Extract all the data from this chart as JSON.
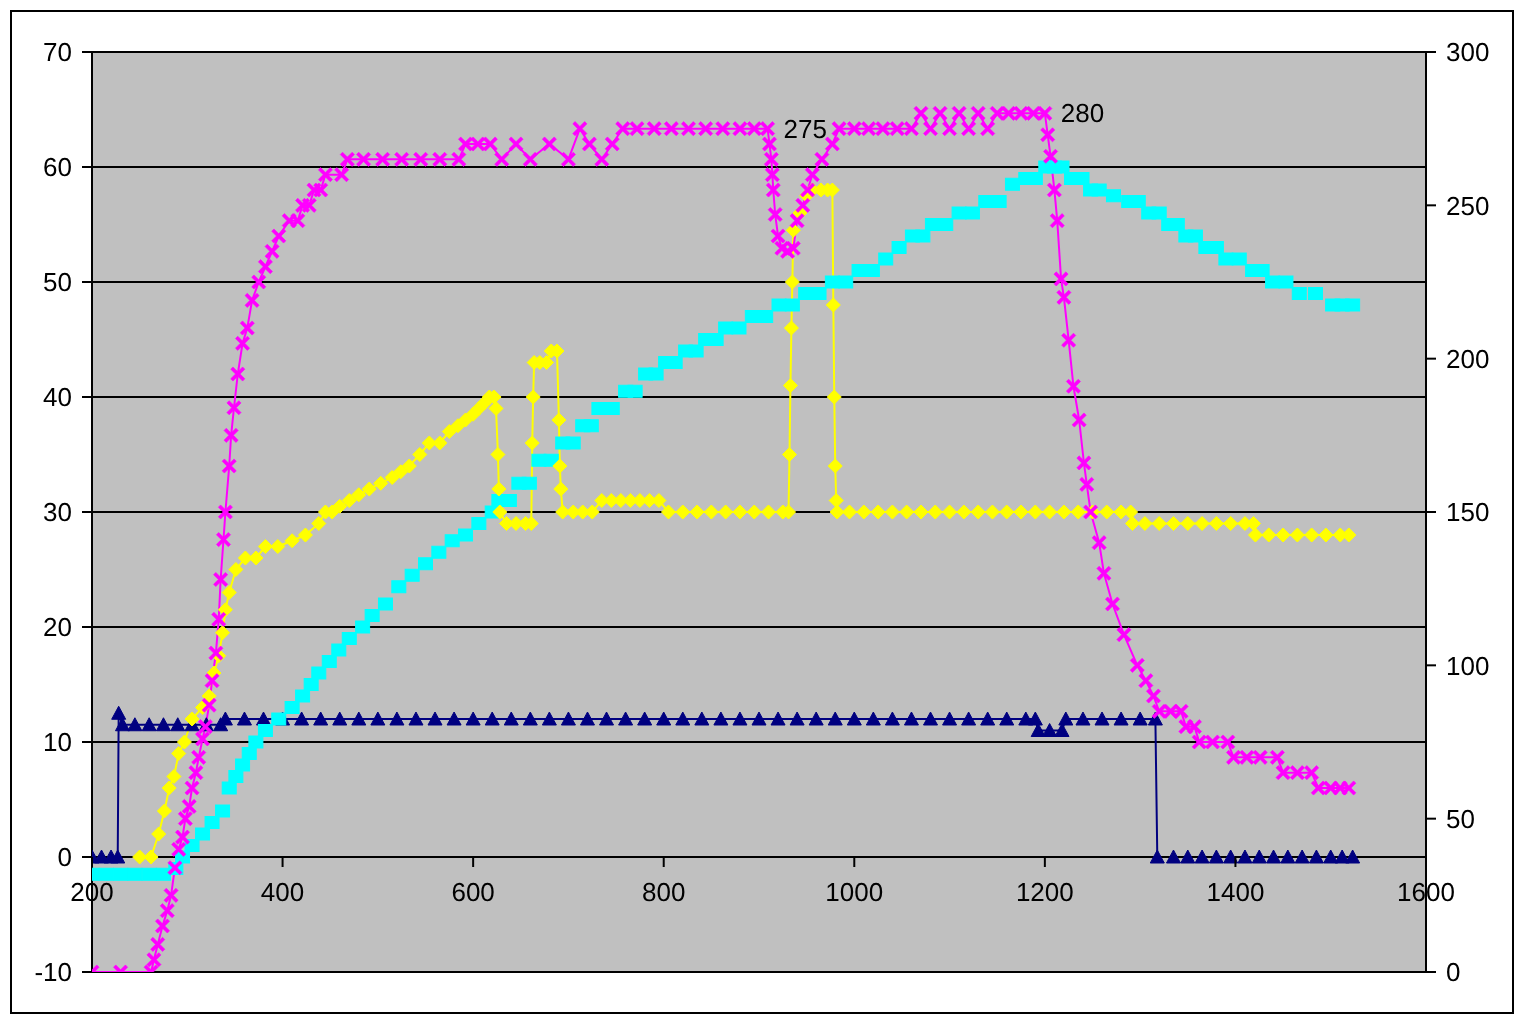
{
  "chart_data": {
    "type": "line",
    "xlim": [
      200,
      1600
    ],
    "xticks": [
      200,
      400,
      600,
      800,
      1000,
      1200,
      1400,
      1600
    ],
    "ylim": [
      -10,
      70
    ],
    "yticks": [
      -10,
      0,
      10,
      20,
      30,
      40,
      50,
      60,
      70
    ],
    "y2lim": [
      0,
      300
    ],
    "y2ticks": [
      0,
      50,
      100,
      150,
      200,
      250,
      300
    ],
    "grid": "y",
    "line_style": "solid",
    "series": [
      {
        "color": "#000080",
        "marker": "triangle",
        "x": [
          200,
          210,
          220,
          227,
          228,
          232,
          245,
          260,
          275,
          290,
          305,
          320,
          335,
          340,
          360,
          380,
          400,
          420,
          440,
          460,
          480,
          500,
          520,
          540,
          560,
          580,
          600,
          620,
          640,
          660,
          680,
          700,
          720,
          740,
          760,
          780,
          800,
          820,
          840,
          860,
          880,
          900,
          920,
          940,
          960,
          980,
          1000,
          1020,
          1040,
          1060,
          1080,
          1100,
          1120,
          1140,
          1160,
          1180,
          1190,
          1193,
          1205,
          1218,
          1222,
          1240,
          1260,
          1280,
          1300,
          1316,
          1318,
          1335,
          1350,
          1365,
          1380,
          1395,
          1410,
          1425,
          1440,
          1455,
          1470,
          1485,
          1500,
          1512,
          1523
        ],
        "values": [
          0,
          0,
          0,
          0,
          12.5,
          11.5,
          11.5,
          11.5,
          11.5,
          11.5,
          11.5,
          11.5,
          11.5,
          12,
          12,
          12,
          12,
          12,
          12,
          12,
          12,
          12,
          12,
          12,
          12,
          12,
          12,
          12,
          12,
          12,
          12,
          12,
          12,
          12,
          12,
          12,
          12,
          12,
          12,
          12,
          12,
          12,
          12,
          12,
          12,
          12,
          12,
          12,
          12,
          12,
          12,
          12,
          12,
          12,
          12,
          12,
          12,
          11,
          11,
          11,
          12,
          12,
          12,
          12,
          12,
          12,
          0,
          0,
          0,
          0,
          0,
          0,
          0,
          0,
          0,
          0,
          0,
          0,
          0,
          0,
          0
        ]
      },
      {
        "type": "scatter",
        "color": "#00ffff",
        "marker": "square",
        "x": [
          200,
          215,
          230,
          245,
          260,
          275,
          288,
          295,
          305,
          316,
          326,
          337,
          344,
          351,
          358,
          365,
          372,
          382,
          396,
          410,
          421,
          430,
          438,
          449,
          459,
          470,
          484,
          494,
          508,
          522,
          536,
          550,
          564,
          578,
          592,
          606,
          620,
          627,
          638,
          648,
          659,
          669,
          682,
          694,
          705,
          715,
          724,
          732,
          746,
          760,
          770,
          781,
          792,
          802,
          812,
          823,
          834,
          844,
          855,
          865,
          879,
          893,
          907,
          921,
          935,
          949,
          963,
          977,
          991,
          1005,
          1019,
          1033,
          1047,
          1061,
          1072,
          1082,
          1096,
          1110,
          1124,
          1138,
          1152,
          1166,
          1180,
          1190,
          1201,
          1210,
          1218,
          1228,
          1239,
          1248,
          1257,
          1272,
          1288,
          1298,
          1309,
          1320,
          1330,
          1339,
          1348,
          1358,
          1369,
          1380,
          1390,
          1404,
          1418,
          1428,
          1439,
          1453,
          1467,
          1484,
          1502,
          1512,
          1523
        ],
        "values": [
          -1.5,
          -1.5,
          -1.5,
          -1.5,
          -1.5,
          -1.5,
          -1,
          0,
          1,
          2,
          3,
          4,
          6,
          7,
          8,
          9,
          10,
          11,
          12,
          13,
          14,
          15,
          16,
          17,
          18,
          19,
          20,
          21,
          22,
          23.5,
          24.5,
          25.5,
          26.5,
          27.5,
          28,
          29,
          30,
          31,
          31,
          32.5,
          32.5,
          34.5,
          34.5,
          36,
          36,
          37.5,
          37.5,
          39,
          39,
          40.5,
          40.5,
          42,
          42,
          43,
          43,
          44,
          44,
          45,
          45,
          46,
          46,
          47,
          47,
          48,
          48,
          49,
          49,
          50,
          50,
          51,
          51,
          52,
          53,
          54,
          54,
          55,
          55,
          56,
          56,
          57,
          57,
          58.5,
          59,
          59,
          60,
          60,
          60,
          59,
          59,
          58,
          58,
          57.5,
          57,
          57,
          56,
          56,
          55,
          55,
          54,
          54,
          53,
          53,
          52,
          52,
          51,
          51,
          50,
          50,
          49,
          49,
          48,
          48,
          48
        ]
      },
      {
        "color": "#ffff00",
        "marker": "diamond",
        "x": [
          250,
          262,
          270,
          276,
          281,
          286,
          291,
          297,
          305,
          316,
          323,
          328,
          333,
          337,
          340,
          344,
          351,
          361,
          372,
          382,
          395,
          410,
          424,
          438,
          445,
          452,
          460,
          470,
          480,
          491,
          503,
          515,
          524,
          533,
          544,
          554,
          565,
          575,
          584,
          592,
          600,
          606,
          612,
          617,
          622,
          624,
          626,
          627,
          628,
          635,
          645,
          655,
          661,
          662,
          663,
          664,
          670,
          677,
          682,
          688,
          690,
          691,
          692,
          694,
          705,
          715,
          725,
          735,
          745,
          755,
          765,
          775,
          785,
          795,
          805,
          820,
          835,
          850,
          865,
          880,
          895,
          910,
          925,
          931,
          932,
          933,
          934,
          935,
          936,
          943,
          950,
          956,
          965,
          972,
          977,
          978,
          979,
          980,
          981,
          982,
          995,
          1010,
          1025,
          1040,
          1055,
          1070,
          1085,
          1100,
          1115,
          1130,
          1145,
          1160,
          1175,
          1190,
          1205,
          1220,
          1235,
          1250,
          1265,
          1280,
          1290,
          1292,
          1305,
          1320,
          1335,
          1350,
          1365,
          1380,
          1395,
          1410,
          1419,
          1421,
          1435,
          1450,
          1465,
          1480,
          1495,
          1510,
          1519
        ],
        "values": [
          0,
          0,
          2,
          4,
          6,
          7,
          9,
          10,
          12,
          13,
          14,
          16,
          17.5,
          19.5,
          21.5,
          23,
          25,
          26,
          26,
          27,
          27,
          27.5,
          28,
          29,
          30,
          30,
          30.5,
          31,
          31.5,
          32,
          32.5,
          33,
          33.5,
          34,
          35,
          36,
          36,
          37,
          37.5,
          38,
          38.5,
          39,
          39.5,
          40,
          40,
          39,
          35,
          32,
          30,
          29,
          29,
          29,
          29,
          36,
          40,
          43,
          43,
          43,
          44,
          44,
          38,
          34,
          32,
          30,
          30,
          30,
          30,
          31,
          31,
          31,
          31,
          31,
          31,
          31,
          30,
          30,
          30,
          30,
          30,
          30,
          30,
          30,
          30,
          30,
          35,
          41,
          46,
          50,
          54.5,
          56,
          57.5,
          58,
          58,
          58,
          58,
          48,
          40,
          34,
          31,
          30,
          30,
          30,
          30,
          30,
          30,
          30,
          30,
          30,
          30,
          30,
          30,
          30,
          30,
          30,
          30,
          30,
          30,
          30,
          30,
          30,
          30,
          29,
          29,
          29,
          29,
          29,
          29,
          29,
          29,
          29,
          29,
          28,
          28,
          28,
          28,
          28,
          28,
          28,
          28
        ]
      },
      {
        "color": "#ff00ff",
        "marker": "cross",
        "axis": "y2",
        "x": [
          200,
          230,
          262,
          265,
          269,
          274,
          279,
          283,
          287,
          291,
          295,
          298,
          302,
          305,
          309,
          312,
          316,
          319,
          323,
          326,
          330,
          333,
          335,
          338,
          340,
          344,
          346,
          349,
          353,
          358,
          363,
          368,
          375,
          382,
          389,
          396,
          407,
          416,
          421,
          428,
          433,
          440,
          445,
          462,
          468,
          485,
          505,
          525,
          545,
          565,
          585,
          592,
          605,
          618,
          630,
          645,
          660,
          680,
          700,
          712,
          722,
          735,
          746,
          757,
          772,
          790,
          808,
          826,
          844,
          862,
          880,
          895,
          909,
          911,
          913,
          914,
          915,
          917,
          920,
          924,
          930,
          936,
          940,
          946,
          951,
          956,
          966,
          977,
          984,
          1000,
          1015,
          1030,
          1045,
          1060,
          1070,
          1080,
          1090,
          1100,
          1110,
          1120,
          1130,
          1140,
          1150,
          1162,
          1175,
          1188,
          1200,
          1203,
          1206,
          1210,
          1213,
          1217,
          1220,
          1225,
          1230,
          1236,
          1241,
          1244,
          1248,
          1257,
          1262,
          1271,
          1283,
          1297,
          1306,
          1314,
          1320,
          1332,
          1343,
          1348,
          1357,
          1362,
          1376,
          1392,
          1398,
          1412,
          1426,
          1444,
          1450,
          1465,
          1480,
          1487,
          1500,
          1510,
          1519
        ],
        "values": [
          0,
          0,
          0,
          4,
          9,
          15,
          20,
          25,
          34,
          40,
          44,
          50,
          54,
          60,
          65,
          70,
          76,
          80,
          87,
          95,
          104,
          115,
          128,
          141,
          150,
          165,
          175,
          184,
          195,
          205,
          210,
          219,
          225,
          230,
          235,
          240,
          245,
          245,
          250,
          250,
          255,
          255,
          260,
          260,
          265,
          265,
          265,
          265,
          265,
          265,
          265,
          270,
          270,
          270,
          265,
          270,
          265,
          270,
          265,
          275,
          270,
          265,
          270,
          275,
          275,
          275,
          275,
          275,
          275,
          275,
          275,
          275,
          275,
          270,
          265,
          260,
          255,
          247,
          240,
          236,
          235,
          236,
          245,
          250,
          255,
          260,
          265,
          270,
          275,
          275,
          275,
          275,
          275,
          275,
          280,
          275,
          280,
          275,
          280,
          275,
          280,
          275,
          280,
          280,
          280,
          280,
          280,
          273,
          266,
          255,
          245,
          226,
          220,
          206,
          191,
          180,
          166,
          159,
          150,
          140,
          130,
          120,
          110,
          100,
          95,
          90,
          85,
          85,
          85,
          80,
          80,
          75,
          75,
          75,
          70,
          70,
          70,
          70,
          65,
          65,
          65,
          60,
          60,
          60,
          60
        ],
        "value_labels": [
          null,
          null,
          null,
          null,
          null,
          null,
          null,
          null,
          null,
          null,
          null,
          null,
          null,
          null,
          null,
          null,
          null,
          null,
          null,
          null,
          null,
          null,
          null,
          null,
          null,
          null,
          null,
          null,
          null,
          null,
          null,
          null,
          null,
          null,
          null,
          null,
          null,
          null,
          null,
          null,
          null,
          null,
          null,
          null,
          null,
          null,
          null,
          null,
          null,
          null,
          null,
          null,
          null,
          null,
          null,
          null,
          null,
          null,
          null,
          null,
          null,
          null,
          null,
          null,
          null,
          null,
          null,
          null,
          null,
          null,
          null,
          null,
          "275",
          null,
          null,
          null,
          null,
          null,
          null,
          null,
          null,
          null,
          null,
          null,
          null,
          null,
          null,
          null,
          null,
          null,
          null,
          null,
          null,
          null,
          null,
          null,
          null,
          null,
          null,
          null,
          null,
          null,
          null,
          null,
          null,
          null,
          "280",
          null,
          null,
          null,
          null,
          null,
          null,
          null,
          null,
          null,
          null,
          null,
          null,
          null,
          null,
          null,
          null,
          null,
          null,
          null,
          null,
          null,
          null,
          null,
          null,
          null,
          null,
          null,
          null,
          null,
          null,
          null,
          null,
          null,
          null,
          null,
          null,
          null,
          null
        ]
      }
    ]
  }
}
